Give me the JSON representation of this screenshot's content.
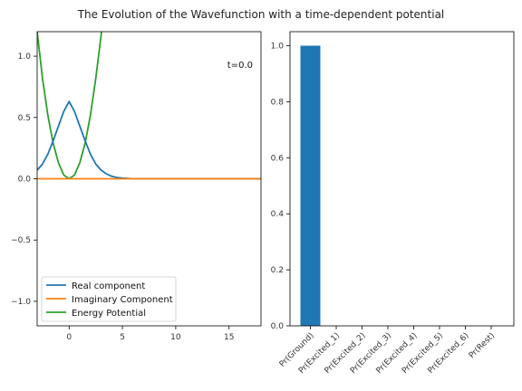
{
  "chart_data": {
    "title": "The Evolution of the Wavefunction with a time-dependent potential",
    "colors": {
      "real": "#1f77b4",
      "imag": "#ff7f0e",
      "potential": "#2ca02c",
      "bar": "#1f77b4"
    },
    "left": {
      "type": "line",
      "xlim": [
        -3,
        18
      ],
      "ylim": [
        -1.2,
        1.2
      ],
      "xticks": [
        0,
        5,
        10,
        15
      ],
      "yticks": [
        -1.0,
        -0.5,
        0.0,
        0.5,
        1.0
      ],
      "ytick_labels": [
        "−1.0",
        "−0.5",
        "0.0",
        "0.5",
        "1.0"
      ],
      "annotation": "t=0.0",
      "legend_position": "lower-left",
      "series": [
        {
          "name": "Real component",
          "key": "real",
          "x": [
            -3,
            -2.5,
            -2,
            -1.5,
            -1,
            -0.5,
            0,
            0.5,
            1,
            1.5,
            2,
            2.5,
            3,
            3.5,
            4,
            4.5,
            5,
            6,
            8,
            12,
            18
          ],
          "y": [
            0.07,
            0.12,
            0.2,
            0.31,
            0.43,
            0.55,
            0.63,
            0.55,
            0.43,
            0.31,
            0.2,
            0.12,
            0.07,
            0.04,
            0.02,
            0.01,
            0.005,
            0.0,
            0.0,
            0.0,
            0.0
          ]
        },
        {
          "name": "Imaginary Component",
          "key": "imag",
          "x": [
            -3,
            18
          ],
          "y": [
            0.0,
            0.0
          ]
        },
        {
          "name": "Energy Potential",
          "key": "potential",
          "x": [
            -3,
            -2.5,
            -2,
            -1.5,
            -1,
            -0.5,
            0,
            0.5,
            1,
            1.5,
            2,
            2.5,
            3,
            3.1
          ],
          "y": [
            1.2,
            0.82,
            0.52,
            0.29,
            0.13,
            0.03,
            0.0,
            0.03,
            0.13,
            0.29,
            0.52,
            0.82,
            1.17,
            1.25
          ]
        }
      ]
    },
    "right": {
      "type": "bar",
      "ylim": [
        0,
        1.05
      ],
      "yticks": [
        0.0,
        0.2,
        0.4,
        0.6,
        0.8,
        1.0
      ],
      "ytick_labels": [
        "0.0",
        "0.2",
        "0.4",
        "0.6",
        "0.8",
        "1.0"
      ],
      "categories": [
        "Pr(Ground)",
        "Pr(Excited_1)",
        "Pr(Excited_2)",
        "Pr(Excited_3)",
        "Pr(Excited_4)",
        "Pr(Excited_5)",
        "Pr(Excited_6)",
        "Pr(Rest)"
      ],
      "values": [
        1.0,
        0.0,
        0.0,
        0.0,
        0.0,
        0.0,
        0.0,
        0.0
      ]
    }
  }
}
